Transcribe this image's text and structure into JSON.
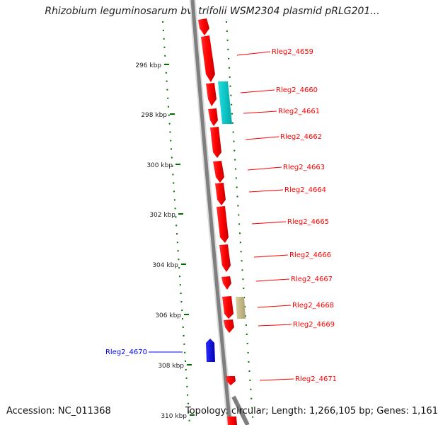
{
  "title": "Rhizobium leguminosarum bv. trifolii WSM2304 plasmid pRLG201...",
  "accession": "Accession: NC_011368",
  "summary": "Topology: circular; Length: 1,266,105 bp; Genes: 1,161",
  "colors": {
    "background": "#ffffff",
    "backbone": "#7f7f7f",
    "forward_gene": "#ff0000",
    "reverse_gene": "#0000ff",
    "tick": "#007000",
    "feature_cyan": "#00c8c8",
    "feature_khaki": "#c8c090"
  },
  "scale": {
    "unit": "kbp",
    "labels": [
      "296 kbp",
      "298 kbp",
      "300 kbp",
      "302 kbp",
      "304 kbp",
      "306 kbp",
      "308 kbp",
      "310 kbp"
    ]
  },
  "genes": [
    {
      "label": "Rleg2_4659",
      "strand": "forward",
      "color": "#ff0000"
    },
    {
      "label": "Rleg2_4660",
      "strand": "forward",
      "color": "#ff0000"
    },
    {
      "label": "Rleg2_4661",
      "strand": "forward",
      "color": "#ff0000"
    },
    {
      "label": "Rleg2_4662",
      "strand": "forward",
      "color": "#ff0000"
    },
    {
      "label": "Rleg2_4663",
      "strand": "forward",
      "color": "#ff0000"
    },
    {
      "label": "Rleg2_4664",
      "strand": "forward",
      "color": "#ff0000"
    },
    {
      "label": "Rleg2_4665",
      "strand": "forward",
      "color": "#ff0000"
    },
    {
      "label": "Rleg2_4666",
      "strand": "forward",
      "color": "#ff0000"
    },
    {
      "label": "Rleg2_4667",
      "strand": "forward",
      "color": "#ff0000"
    },
    {
      "label": "Rleg2_4668",
      "strand": "forward",
      "color": "#ff0000"
    },
    {
      "label": "Rleg2_4669",
      "strand": "forward",
      "color": "#ff0000"
    },
    {
      "label": "Rleg2_4670",
      "strand": "reverse",
      "color": "#0000ff"
    },
    {
      "label": "Rleg2_4671",
      "strand": "forward",
      "color": "#ff0000"
    }
  ]
}
